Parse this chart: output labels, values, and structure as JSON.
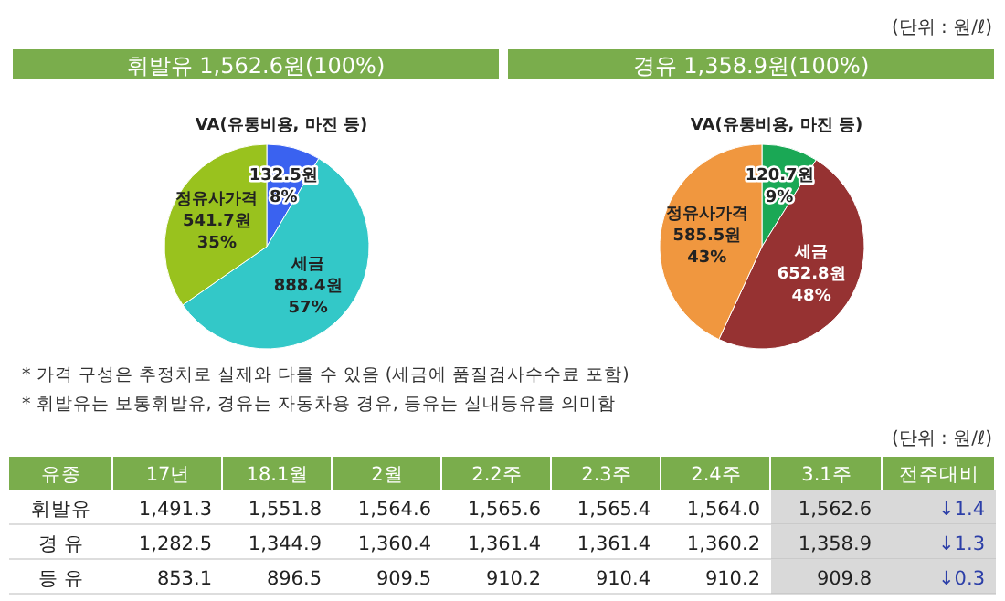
{
  "chart_data": [
    {
      "type": "pie",
      "title": "휘발유 1,562.6원(100%)",
      "annotations": [
        "(단위 : 원/ℓ)"
      ],
      "categories": [
        "VA(유통비용, 마진 등)",
        "세금",
        "정유사가격"
      ],
      "values": [
        132.5,
        888.4,
        541.7
      ],
      "value_labels": [
        "132.5원\n8%",
        "888.4원\n57%",
        "541.7원\n35%"
      ],
      "colors": [
        "#3a62f0",
        "#33c8c8",
        "#99c21e"
      ]
    },
    {
      "type": "pie",
      "title": "경유 1,358.9원(100%)",
      "annotations": [
        "* 가격 구성은 추정치로 실제와 다를 수 있음 (세금에 품질검사수수료 포함)",
        "* 휘발유는 보통휘발유, 경유는 자동차용 경유, 등유는 실내등유를 의미함"
      ],
      "categories": [
        "VA(유통비용, 마진 등)",
        "세금",
        "정유사가격"
      ],
      "values": [
        120.7,
        652.8,
        585.5
      ],
      "value_labels": [
        "120.7원\n9%",
        "652.8원\n48%",
        "585.5원\n43%"
      ],
      "colors": [
        "#1aa855",
        "#963232",
        "#f0973f"
      ]
    },
    {
      "type": "other",
      "subtitle": "(단위 : 원/ℓ)",
      "ylabel": "유종",
      "categories": [
        "17년",
        "18.1월",
        "2월",
        "2.2주",
        "2.3주",
        "2.4주",
        "3.1주",
        "전주대비"
      ],
      "y_categories": [
        "휘발유",
        "경 유",
        "등 유"
      ],
      "cell_labels": [
        [
          "1,491.3",
          "1,551.8",
          "1,564.6",
          "1,565.6",
          "1,565.4",
          "1,564.0",
          "1,562.6",
          "↓1.4"
        ],
        [
          "1,282.5",
          "1,344.9",
          "1,360.4",
          "1,361.4",
          "1,361.4",
          "1,360.2",
          "1,358.9",
          "↓1.3"
        ],
        [
          "853.1",
          "896.5",
          "909.5",
          "910.2",
          "910.4",
          "910.2",
          "909.8",
          "↓0.3"
        ]
      ]
    }
  ]
}
